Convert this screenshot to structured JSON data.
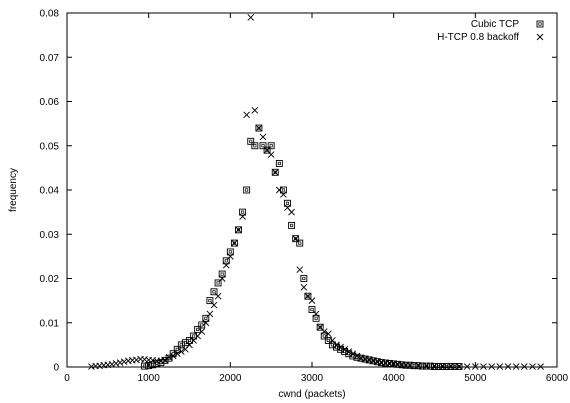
{
  "chart_data": {
    "type": "scatter",
    "title": "",
    "xlabel": "cwnd (packets)",
    "ylabel": "frequency",
    "xlim": [
      0,
      6000
    ],
    "ylim": [
      0,
      0.08
    ],
    "xticks": [
      "0",
      "1000",
      "2000",
      "3000",
      "4000",
      "5000",
      "6000"
    ],
    "yticks": [
      "0",
      "0.01",
      "0.02",
      "0.03",
      "0.04",
      "0.05",
      "0.06",
      "0.07",
      "0.08"
    ],
    "legend_position": "top-right",
    "grid": false,
    "series": [
      {
        "name": "Cubic TCP",
        "marker": "boxed-square",
        "x": [
          950,
          1000,
          1050,
          1100,
          1150,
          1200,
          1250,
          1300,
          1350,
          1400,
          1450,
          1500,
          1550,
          1600,
          1650,
          1700,
          1750,
          1800,
          1850,
          1900,
          1950,
          2000,
          2050,
          2100,
          2150,
          2200,
          2250,
          2300,
          2350,
          2400,
          2450,
          2500,
          2550,
          2600,
          2650,
          2700,
          2750,
          2800,
          2850,
          2900,
          2950,
          3000,
          3050,
          3100,
          3150,
          3200,
          3250,
          3300,
          3350,
          3400,
          3450,
          3500,
          3550,
          3600,
          3650,
          3700,
          3750,
          3800,
          3850,
          3900,
          3950,
          4000,
          4050,
          4100,
          4150,
          4200,
          4250,
          4300,
          4350,
          4400,
          4450,
          4500,
          4550,
          4600,
          4650,
          4700,
          4750,
          4800
        ],
        "y": [
          0.0002,
          0.0003,
          0.0005,
          0.0008,
          0.001,
          0.0015,
          0.002,
          0.003,
          0.004,
          0.005,
          0.0055,
          0.006,
          0.007,
          0.0085,
          0.0095,
          0.011,
          0.015,
          0.017,
          0.019,
          0.021,
          0.024,
          0.026,
          0.028,
          0.031,
          0.035,
          0.04,
          0.051,
          0.05,
          0.054,
          0.05,
          0.049,
          0.05,
          0.044,
          0.046,
          0.04,
          0.037,
          0.032,
          0.029,
          0.028,
          0.02,
          0.016,
          0.013,
          0.011,
          0.009,
          0.007,
          0.006,
          0.005,
          0.0045,
          0.004,
          0.0035,
          0.003,
          0.0025,
          0.0022,
          0.002,
          0.0018,
          0.0016,
          0.0014,
          0.0012,
          0.001,
          0.0009,
          0.0008,
          0.0007,
          0.0006,
          0.0005,
          0.0004,
          0.0004,
          0.0003,
          0.0003,
          0.0002,
          0.0002,
          0.0002,
          0.0001,
          0.0001,
          0.0001,
          0.0001,
          0.0001,
          0.0001,
          0.0001
        ]
      },
      {
        "name": "H-TCP 0.8 backoff",
        "marker": "cross",
        "x": [
          300,
          350,
          400,
          450,
          500,
          550,
          600,
          650,
          700,
          750,
          800,
          850,
          900,
          950,
          1000,
          1050,
          1100,
          1150,
          1200,
          1250,
          1300,
          1350,
          1400,
          1450,
          1500,
          1550,
          1600,
          1650,
          1700,
          1750,
          1800,
          1850,
          1900,
          1950,
          2000,
          2050,
          2100,
          2150,
          2200,
          2250,
          2300,
          2350,
          2400,
          2450,
          2500,
          2550,
          2600,
          2650,
          2700,
          2750,
          2800,
          2850,
          2900,
          2950,
          3000,
          3050,
          3100,
          3150,
          3200,
          3250,
          3300,
          3350,
          3400,
          3450,
          3500,
          3550,
          3600,
          3650,
          3700,
          3750,
          3800,
          3850,
          3900,
          3950,
          4000,
          4050,
          4100,
          4150,
          4200,
          4300,
          4400,
          4500,
          4600,
          4700,
          4800,
          4900,
          5000,
          5100,
          5200,
          5300,
          5400,
          5500,
          5600,
          5700,
          5800
        ],
        "y": [
          0.0001,
          0.0002,
          0.0003,
          0.0004,
          0.0005,
          0.0006,
          0.0008,
          0.001,
          0.0012,
          0.0014,
          0.0015,
          0.0016,
          0.0018,
          0.0017,
          0.0016,
          0.0015,
          0.0014,
          0.0014,
          0.0015,
          0.0022,
          0.0025,
          0.003,
          0.0035,
          0.004,
          0.005,
          0.006,
          0.007,
          0.008,
          0.01,
          0.012,
          0.014,
          0.016,
          0.02,
          0.023,
          0.025,
          0.028,
          0.031,
          0.034,
          0.057,
          0.079,
          0.058,
          0.054,
          0.052,
          0.049,
          0.048,
          0.044,
          0.04,
          0.039,
          0.036,
          0.035,
          0.029,
          0.022,
          0.018,
          0.016,
          0.015,
          0.012,
          0.009,
          0.008,
          0.0075,
          0.006,
          0.005,
          0.0045,
          0.004,
          0.0035,
          0.003,
          0.0025,
          0.002,
          0.0018,
          0.0016,
          0.0014,
          0.0012,
          0.001,
          0.0009,
          0.0008,
          0.0007,
          0.0006,
          0.0005,
          0.0004,
          0.0004,
          0.0003,
          0.0003,
          0.0002,
          0.0002,
          0.0002,
          0.0001,
          0.0001,
          0.0001,
          0.0001,
          0.0001,
          0.0001,
          0.0001,
          0.0001,
          0.0001,
          0.0001,
          0.0001
        ]
      }
    ]
  }
}
